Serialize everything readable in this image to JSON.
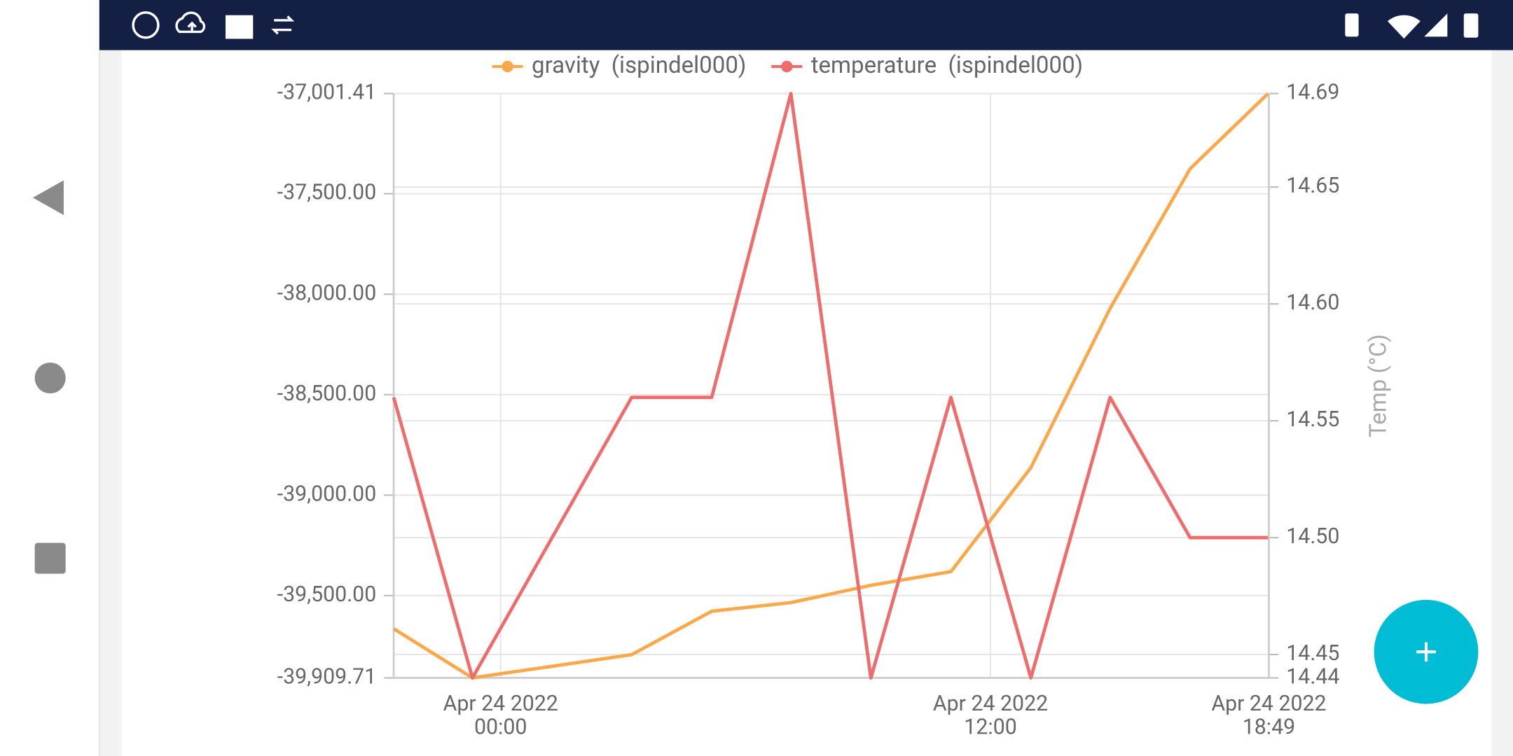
{
  "chart_data": {
    "type": "line",
    "legend": "top",
    "grid": true,
    "x": [
      -2.62,
      -0.69,
      3.21,
      5.17,
      7.11,
      9.07,
      11.03,
      12.99,
      14.93,
      16.89,
      18.8
    ],
    "xlim": [
      -2.62,
      18.82
    ],
    "xticks": [
      {
        "value": 0,
        "label": "Apr 24 2022\n00:00"
      },
      {
        "value": 12,
        "label": "Apr 24 2022\n12:00"
      },
      {
        "value": 18.82,
        "label": "Apr 24 2022\n18:49"
      }
    ],
    "ylim": [
      -39909.71,
      -37001.41
    ],
    "yticks": [
      {
        "value": -39909.71,
        "label": "-39,909.71"
      },
      {
        "value": -39500,
        "label": "-39,500.00"
      },
      {
        "value": -39000,
        "label": "-39,000.00"
      },
      {
        "value": -38500,
        "label": "-38,500.00"
      },
      {
        "value": -38000,
        "label": "-38,000.00"
      },
      {
        "value": -37500,
        "label": "-37,500.00"
      },
      {
        "value": -37001.41,
        "label": "-37,001.41"
      }
    ],
    "y2lim": [
      14.44,
      14.69
    ],
    "y2ticks": [
      14.44,
      14.45,
      {
        "value": 14.5,
        "label": "14.50"
      },
      14.55,
      {
        "value": 14.6,
        "label": "14.60"
      },
      14.65,
      14.69
    ],
    "y2label": "Temp (°C)",
    "series": [
      {
        "name": "gravity  (ispindel000)",
        "color": "#f9a94b",
        "values": [
          -39665,
          -39909.71,
          -39794,
          -39578,
          -39535,
          -39449,
          -39381,
          -38863,
          -38071,
          -37376,
          -37001.41
        ]
      },
      {
        "name": "temperature  (ispindel000)",
        "color": "#ef6c6c",
        "axis": "y2",
        "values": [
          14.56,
          14.44,
          14.56,
          14.56,
          14.69,
          14.44,
          14.56,
          14.44,
          14.56,
          14.5,
          14.5
        ]
      }
    ]
  }
}
